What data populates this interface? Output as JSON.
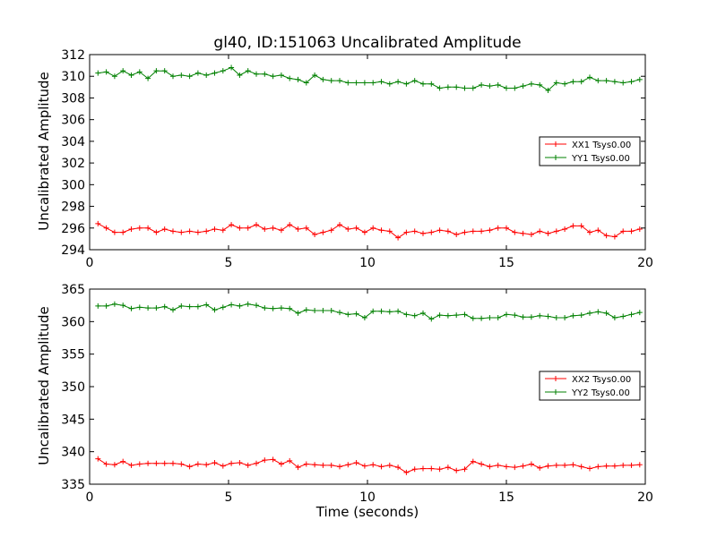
{
  "chart_data": [
    {
      "type": "line",
      "title": "gl40, ID:151063 Uncalibrated Amplitude",
      "xlabel": "",
      "ylabel": "Uncalibrated Amplitude",
      "xlim": [
        0,
        20
      ],
      "ylim": [
        294,
        312
      ],
      "xticks": [
        "0",
        "5",
        "10",
        "15",
        "20"
      ],
      "yticks": [
        "294",
        "296",
        "298",
        "300",
        "302",
        "304",
        "306",
        "308",
        "310",
        "312"
      ],
      "legend_position": "center-right",
      "x": [
        0.3,
        0.6,
        0.9,
        1.2,
        1.5,
        1.8,
        2.1,
        2.4,
        2.7,
        3.0,
        3.3,
        3.6,
        3.9,
        4.2,
        4.5,
        4.8,
        5.1,
        5.4,
        5.7,
        6.0,
        6.3,
        6.6,
        6.9,
        7.2,
        7.5,
        7.8,
        8.1,
        8.4,
        8.7,
        9.0,
        9.3,
        9.6,
        9.9,
        10.2,
        10.5,
        10.8,
        11.1,
        11.4,
        11.7,
        12.0,
        12.3,
        12.6,
        12.9,
        13.2,
        13.5,
        13.8,
        14.1,
        14.4,
        14.7,
        15.0,
        15.3,
        15.6,
        15.9,
        16.2,
        16.5,
        16.8,
        17.1,
        17.4,
        17.7,
        18.0,
        18.3,
        18.6,
        18.9,
        19.2,
        19.5,
        19.8
      ],
      "series": [
        {
          "name": "XX1 Tsys0.00",
          "color": "#ff0000",
          "values": [
            296.4,
            296.0,
            295.6,
            295.6,
            295.9,
            296.0,
            296.0,
            295.6,
            295.9,
            295.7,
            295.6,
            295.7,
            295.6,
            295.7,
            295.9,
            295.8,
            296.3,
            296.0,
            296.0,
            296.3,
            295.9,
            296.0,
            295.8,
            296.3,
            295.9,
            296.0,
            295.4,
            295.6,
            295.8,
            296.3,
            295.9,
            296.0,
            295.6,
            296.0,
            295.8,
            295.7,
            295.1,
            295.6,
            295.7,
            295.5,
            295.6,
            295.8,
            295.7,
            295.4,
            295.6,
            295.7,
            295.7,
            295.8,
            296.0,
            296.0,
            295.6,
            295.5,
            295.4,
            295.7,
            295.5,
            295.7,
            295.9,
            296.2,
            296.2,
            295.6,
            295.8,
            295.3,
            295.2,
            295.7,
            295.7,
            295.9
          ]
        },
        {
          "name": "YY1 Tsys0.00",
          "color": "#008000",
          "values": [
            310.3,
            310.4,
            310.0,
            310.5,
            310.1,
            310.4,
            309.8,
            310.5,
            310.5,
            310.0,
            310.1,
            310.0,
            310.3,
            310.1,
            310.3,
            310.5,
            310.8,
            310.1,
            310.5,
            310.2,
            310.2,
            310.0,
            310.1,
            309.8,
            309.7,
            309.4,
            310.1,
            309.7,
            309.6,
            309.6,
            309.4,
            309.4,
            309.4,
            309.4,
            309.5,
            309.3,
            309.5,
            309.3,
            309.6,
            309.3,
            309.3,
            308.9,
            309.0,
            309.0,
            308.9,
            308.9,
            309.2,
            309.1,
            309.2,
            308.9,
            308.9,
            309.1,
            309.3,
            309.2,
            308.7,
            309.4,
            309.3,
            309.5,
            309.5,
            309.9,
            309.6,
            309.6,
            309.5,
            309.4,
            309.5,
            309.7
          ]
        }
      ]
    },
    {
      "type": "line",
      "title": "",
      "xlabel": "Time (seconds)",
      "ylabel": "Uncalibrated Amplitude",
      "xlim": [
        0,
        20
      ],
      "ylim": [
        335,
        365
      ],
      "xticks": [
        "0",
        "5",
        "10",
        "15",
        "20"
      ],
      "yticks": [
        "335",
        "340",
        "345",
        "350",
        "355",
        "360",
        "365"
      ],
      "legend_position": "center-right",
      "x": [
        0.3,
        0.6,
        0.9,
        1.2,
        1.5,
        1.8,
        2.1,
        2.4,
        2.7,
        3.0,
        3.3,
        3.6,
        3.9,
        4.2,
        4.5,
        4.8,
        5.1,
        5.4,
        5.7,
        6.0,
        6.3,
        6.6,
        6.9,
        7.2,
        7.5,
        7.8,
        8.1,
        8.4,
        8.7,
        9.0,
        9.3,
        9.6,
        9.9,
        10.2,
        10.5,
        10.8,
        11.1,
        11.4,
        11.7,
        12.0,
        12.3,
        12.6,
        12.9,
        13.2,
        13.5,
        13.8,
        14.1,
        14.4,
        14.7,
        15.0,
        15.3,
        15.6,
        15.9,
        16.2,
        16.5,
        16.8,
        17.1,
        17.4,
        17.7,
        18.0,
        18.3,
        18.6,
        18.9,
        19.2,
        19.5,
        19.8
      ],
      "series": [
        {
          "name": "XX2 Tsys0.00",
          "color": "#ff0000",
          "values": [
            338.9,
            338.1,
            338.0,
            338.5,
            337.9,
            338.1,
            338.2,
            338.2,
            338.2,
            338.2,
            338.1,
            337.7,
            338.1,
            338.0,
            338.3,
            337.8,
            338.2,
            338.3,
            337.9,
            338.2,
            338.7,
            338.8,
            338.1,
            338.6,
            337.6,
            338.1,
            338.0,
            337.9,
            337.9,
            337.7,
            338.0,
            338.3,
            337.8,
            338.0,
            337.7,
            337.9,
            337.6,
            336.8,
            337.3,
            337.4,
            337.4,
            337.3,
            337.6,
            337.1,
            337.3,
            338.5,
            338.1,
            337.7,
            337.9,
            337.7,
            337.6,
            337.8,
            338.1,
            337.5,
            337.8,
            337.9,
            337.9,
            338.0,
            337.7,
            337.4,
            337.7,
            337.8,
            337.8,
            337.9,
            337.9,
            338.0
          ]
        },
        {
          "name": "YY2 Tsys0.00",
          "color": "#008000",
          "values": [
            362.4,
            362.4,
            362.7,
            362.5,
            362.0,
            362.2,
            362.1,
            362.1,
            362.3,
            361.8,
            362.4,
            362.3,
            362.3,
            362.6,
            361.8,
            362.2,
            362.6,
            362.4,
            362.7,
            362.5,
            362.1,
            362.0,
            362.1,
            362.0,
            361.3,
            361.8,
            361.7,
            361.7,
            361.7,
            361.4,
            361.1,
            361.2,
            360.6,
            361.6,
            361.6,
            361.5,
            361.6,
            361.1,
            360.9,
            361.3,
            360.4,
            361.0,
            360.9,
            361.0,
            361.1,
            360.5,
            360.5,
            360.6,
            360.6,
            361.1,
            361.0,
            360.7,
            360.7,
            360.9,
            360.8,
            360.6,
            360.6,
            360.9,
            361.0,
            361.3,
            361.5,
            361.3,
            360.6,
            360.8,
            361.1,
            361.4
          ]
        }
      ]
    }
  ]
}
